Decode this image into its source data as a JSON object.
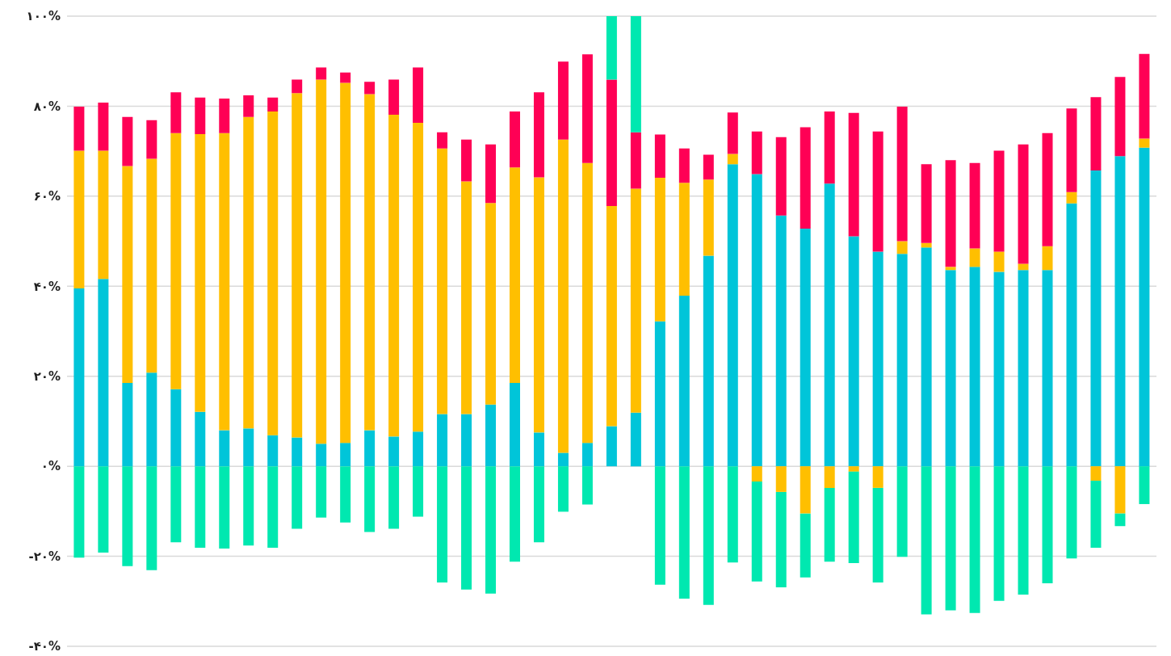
{
  "chart_data": {
    "type": "bar",
    "stacked": true,
    "categories": [
      null,
      null,
      null,
      null,
      null,
      null,
      null,
      null,
      null,
      null,
      null,
      null,
      null,
      null,
      null,
      null,
      null,
      null,
      null,
      null,
      null,
      null,
      null,
      null,
      null,
      null,
      null,
      null,
      null,
      null,
      null,
      null,
      null,
      null,
      null,
      null,
      null,
      null,
      null,
      null,
      null,
      null,
      null,
      null,
      null
    ],
    "series": [
      {
        "color": "#00c5d9",
        "values": [
          39.5,
          41.6,
          18.5,
          20.8,
          17.1,
          12.1,
          8.0,
          8.4,
          6.9,
          6.4,
          5.0,
          5.2,
          8.0,
          6.6,
          7.7,
          11.6,
          11.6,
          13.7,
          18.5,
          7.5,
          3.0,
          5.2,
          8.9,
          11.9,
          32.2,
          37.9,
          46.8,
          67.1,
          64.9,
          55.7,
          52.8,
          62.8,
          51.1,
          47.7,
          47.2,
          48.6,
          43.6,
          44.3,
          43.2,
          43.6,
          43.6,
          58.4,
          65.7,
          68.9,
          70.8
        ]
      },
      {
        "color": "#ffbf00",
        "values": [
          30.6,
          28.5,
          48.2,
          47.5,
          56.9,
          61.7,
          66.0,
          69.2,
          71.9,
          76.5,
          80.9,
          80.0,
          74.7,
          71.5,
          68.6,
          59.0,
          51.7,
          44.8,
          47.9,
          56.7,
          69.6,
          62.2,
          48.9,
          49.8,
          31.9,
          25.1,
          16.9,
          2.3,
          -3.4,
          -5.7,
          -10.5,
          -4.8,
          -1.2,
          -4.8,
          2.8,
          1.0,
          0.7,
          4.1,
          4.5,
          1.4,
          5.3,
          2.5,
          -3.2,
          -10.5,
          2.0
        ]
      },
      {
        "color": "#ff0055",
        "values": [
          9.8,
          10.7,
          10.9,
          8.6,
          9.1,
          8.1,
          7.7,
          4.8,
          3.1,
          3.0,
          2.7,
          2.3,
          2.7,
          7.8,
          12.3,
          3.6,
          9.3,
          13.0,
          12.4,
          18.9,
          17.3,
          24.1,
          28.1,
          12.5,
          9.6,
          7.6,
          5.5,
          9.2,
          9.5,
          17.4,
          22.5,
          16.0,
          27.4,
          26.7,
          29.9,
          17.5,
          23.7,
          19.0,
          22.4,
          26.5,
          25.1,
          18.6,
          16.3,
          17.6,
          18.8
        ]
      },
      {
        "color": "#00e8b0",
        "values": [
          -20.3,
          -19.2,
          -22.2,
          -23.1,
          -16.9,
          -18.1,
          -18.3,
          -17.6,
          -18.1,
          -13.9,
          -11.4,
          -12.5,
          -14.6,
          -13.9,
          -11.2,
          -25.8,
          -27.4,
          -28.3,
          -21.2,
          -16.9,
          -10.1,
          -8.5,
          14.1,
          25.8,
          -26.3,
          -29.4,
          -30.8,
          -21.4,
          -22.2,
          -21.2,
          -14.2,
          -16.4,
          -20.3,
          -21.0,
          -20.1,
          -32.9,
          -32.0,
          -32.6,
          -29.9,
          -28.5,
          -26.0,
          -20.5,
          -14.9,
          -2.8,
          -8.4
        ]
      }
    ],
    "ylim": [
      -40,
      100
    ],
    "yticks": [
      {
        "value": -40,
        "label": "-۴۰%"
      },
      {
        "value": -20,
        "label": "-۲۰%"
      },
      {
        "value": 0,
        "label": "۰%"
      },
      {
        "value": 20,
        "label": "۲۰%"
      },
      {
        "value": 40,
        "label": "۴۰%"
      },
      {
        "value": 60,
        "label": "۶۰%"
      },
      {
        "value": 80,
        "label": "۸۰%"
      },
      {
        "value": 100,
        "label": "۱۰۰%"
      }
    ],
    "grid": "y",
    "tick_labels": "y"
  }
}
